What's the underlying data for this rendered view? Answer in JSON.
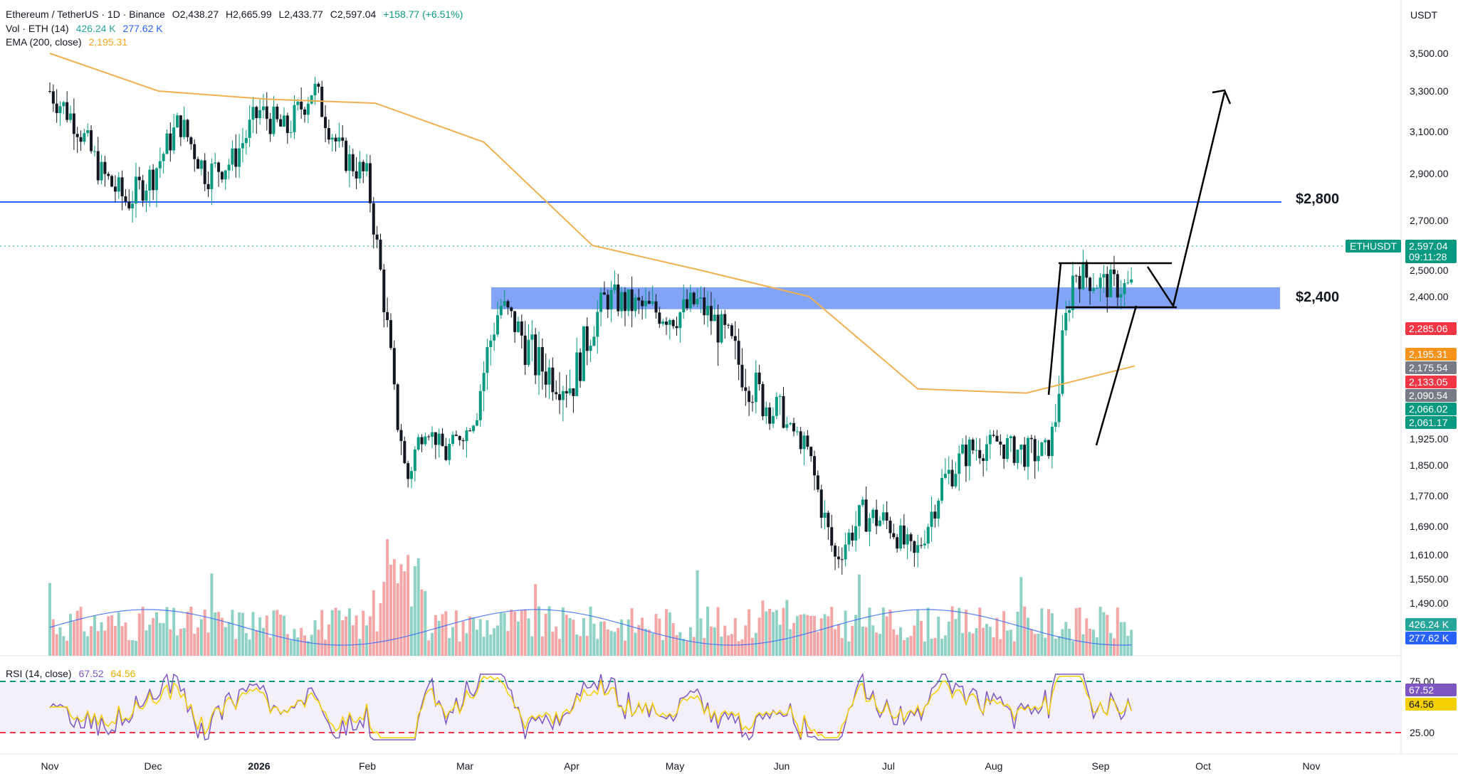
{
  "header": {
    "symbol": "Ethereum / TetherUS · 1D · Binance",
    "open": "O2,438.27",
    "high": "H2,665.99",
    "low": "L2,433.77",
    "close": "C2,597.04",
    "change": "+158.77 (+6.51%)",
    "vol_label": "Vol · ETH (14)",
    "vol_value": "426.24 K",
    "vol_ma": "277.62 K",
    "ema_label": "EMA (200, close)",
    "ema_value": "2,195.31",
    "rsi_label": "RSI (14, close)",
    "rsi_value": "67.52",
    "rsi_ma": "64.56"
  },
  "price_axis": {
    "currency": "USDT",
    "ticks": [
      "3,500.00",
      "3,300.00",
      "3,100.00",
      "2,900.00",
      "2,700.00",
      "2,500.00",
      "2,400.00",
      "1,925.00",
      "1,850.00",
      "1,770.00",
      "1,690.00",
      "1,610.00",
      "1,550.00",
      "1,490.00"
    ]
  },
  "rsi_axis": {
    "ticks": [
      "75.00",
      "25.00"
    ]
  },
  "badges": [
    {
      "text": "2,597.04",
      "color": "#089981"
    },
    {
      "text": "09:11:28",
      "color": "#089981"
    },
    {
      "text": "2,285.06",
      "color": "#f23645"
    },
    {
      "text": "2,195.31",
      "color": "#f7931a"
    },
    {
      "text": "2,175.54",
      "color": "#787b86"
    },
    {
      "text": "2,133.05",
      "color": "#f23645"
    },
    {
      "text": "2,090.54",
      "color": "#787b86"
    },
    {
      "text": "2,066.02",
      "color": "#089981"
    },
    {
      "text": "2,061.17",
      "color": "#089981"
    },
    {
      "text": "426.24 K",
      "color": "#26a69a"
    },
    {
      "text": "277.62 K",
      "color": "#2962ff"
    },
    {
      "text": "67.52",
      "color": "#7e57c2"
    },
    {
      "text": "64.56",
      "color": "#f5d000"
    }
  ],
  "symbol_tag": "ETHUSDT",
  "annotations": {
    "level_high": "$2,800",
    "level_low": "$2,400"
  },
  "time_axis": [
    "Nov",
    "Dec",
    "2026",
    "Feb",
    "Mar",
    "Apr",
    "May",
    "Jun",
    "Jul",
    "Aug",
    "Sep",
    "Oct",
    "Nov"
  ],
  "colors": {
    "up": "#089981",
    "down": "#131722",
    "ema": "#f0b050",
    "resistance": "#2962ff",
    "zone": "#6d94f5"
  },
  "chart_data": {
    "type": "candlestick",
    "title": "Ethereum / TetherUS · 1D · Binance",
    "x": [
      "Nov",
      "Dec",
      "2026",
      "Feb",
      "Mar",
      "Apr",
      "May",
      "Jun",
      "Jul",
      "Aug",
      "Sep",
      "Oct",
      "Nov"
    ],
    "close_path": [
      {
        "x": "Nov",
        "y": 3300
      },
      {
        "x": "Nov",
        "y": 3150
      },
      {
        "x": "Nov",
        "y": 2900
      },
      {
        "x": "Nov",
        "y": 2780
      },
      {
        "x": "Dec",
        "y": 2900
      },
      {
        "x": "Dec",
        "y": 3150
      },
      {
        "x": "Dec",
        "y": 2900
      },
      {
        "x": "Dec",
        "y": 2960
      },
      {
        "x": "2026",
        "y": 3200
      },
      {
        "x": "2026",
        "y": 3100
      },
      {
        "x": "2026",
        "y": 3320
      },
      {
        "x": "2026",
        "y": 3000
      },
      {
        "x": "Feb",
        "y": 2880
      },
      {
        "x": "Feb",
        "y": 2300
      },
      {
        "x": "Feb",
        "y": 1800
      },
      {
        "x": "Feb",
        "y": 2000
      },
      {
        "x": "Feb",
        "y": 1880
      },
      {
        "x": "Mar",
        "y": 1970
      },
      {
        "x": "Mar",
        "y": 2370
      },
      {
        "x": "Mar",
        "y": 2200
      },
      {
        "x": "Apr",
        "y": 2150
      },
      {
        "x": "Apr",
        "y": 2400
      },
      {
        "x": "Apr",
        "y": 2360
      },
      {
        "x": "May",
        "y": 2330
      },
      {
        "x": "May",
        "y": 2380
      },
      {
        "x": "May",
        "y": 2300
      },
      {
        "x": "May",
        "y": 2200
      },
      {
        "x": "May",
        "y": 2120
      },
      {
        "x": "Jun",
        "y": 2070
      },
      {
        "x": "Jun",
        "y": 1880
      },
      {
        "x": "Jun",
        "y": 1600
      },
      {
        "x": "Jun",
        "y": 1720
      },
      {
        "x": "Jul",
        "y": 1700
      },
      {
        "x": "Jul",
        "y": 1600
      },
      {
        "x": "Jul",
        "y": 1800
      },
      {
        "x": "Jul",
        "y": 1890
      },
      {
        "x": "Aug",
        "y": 1920
      },
      {
        "x": "Aug",
        "y": 1890
      },
      {
        "x": "Aug",
        "y": 1880
      },
      {
        "x": "Aug",
        "y": 2500
      },
      {
        "x": "Sep",
        "y": 2450
      },
      {
        "x": "Sep",
        "y": 2430
      },
      {
        "x": "Sep",
        "y": 2597.04
      }
    ],
    "ema200": [
      3500,
      3300,
      3260,
      3240,
      3050,
      2600,
      2500,
      2400,
      2140,
      2130,
      2195.31
    ],
    "horizontal_levels": [
      2800,
      2400
    ],
    "support_zone": [
      2370,
      2430
    ],
    "rsi": {
      "value": 67.52,
      "ma": 64.56,
      "overbought": 75,
      "oversold": 25
    },
    "volume": {
      "last": "426.24 K",
      "ma": "277.62 K"
    },
    "ylim": [
      1450,
      3600
    ]
  }
}
